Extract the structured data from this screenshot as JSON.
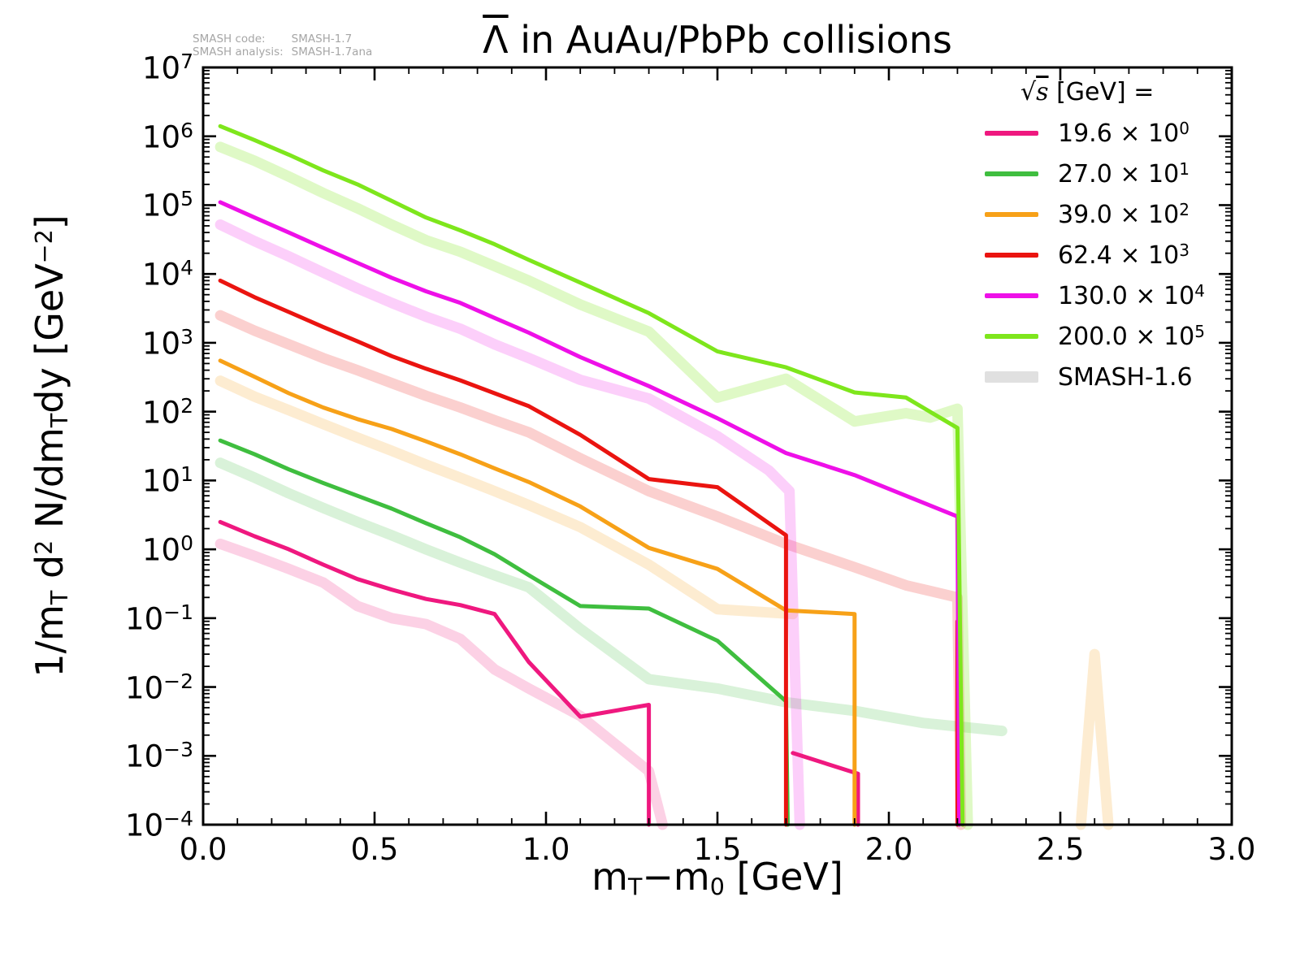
{
  "annotation": {
    "code_label": "SMASH code:",
    "code_value": "SMASH-1.7",
    "analysis_label": "SMASH analysis:",
    "analysis_value": "SMASH-1.7ana"
  },
  "title": {
    "particle": "Λ",
    "rest": " in AuAu/PbPb collisions"
  },
  "axes": {
    "xlabel": {
      "p1": "m",
      "sub1": "T",
      "p2": "−m",
      "sub2": "0",
      "p3": " [GeV]"
    },
    "ylabel": {
      "p1": "1/m",
      "sub1": "T",
      "p2": " d",
      "sup1": "2",
      "p3": " N/dm",
      "sub2": "T",
      "p4": "dy  [GeV",
      "sup2": "−2",
      "p5": "]"
    },
    "x_tick_labels": [
      "0.0",
      "0.5",
      "1.0",
      "1.5",
      "2.0",
      "2.5",
      "3.0"
    ],
    "x_tick_values": [
      0,
      0.5,
      1.0,
      1.5,
      2.0,
      2.5,
      3.0
    ],
    "x_minor_step": 0.1,
    "y_tick_exponents": [
      "7",
      "6",
      "5",
      "4",
      "3",
      "2",
      "1",
      "0",
      "−1",
      "−2",
      "−3",
      "−4"
    ],
    "y_tick_exp_values": [
      7,
      6,
      5,
      4,
      3,
      2,
      1,
      0,
      -1,
      -2,
      -3,
      -4
    ]
  },
  "legend": {
    "title_sqrt": "√",
    "title_arg": "s",
    "title_rest": " [GeV] =",
    "entries": [
      {
        "value": "19.6",
        "times": "×",
        "base": "10",
        "exp": "0",
        "color": "#ef187f",
        "thick": false
      },
      {
        "value": "27.0",
        "times": "×",
        "base": "10",
        "exp": "1",
        "color": "#3fbe3f",
        "thick": false
      },
      {
        "value": "39.0",
        "times": "×",
        "base": "10",
        "exp": "2",
        "color": "#f7a118",
        "thick": false
      },
      {
        "value": "62.4",
        "times": "×",
        "base": "10",
        "exp": "3",
        "color": "#ea1410",
        "thick": false
      },
      {
        "value": "130.0",
        "times": "×",
        "base": "10",
        "exp": "4",
        "color": "#ee10e8",
        "thick": false
      },
      {
        "value": "200.0",
        "times": "×",
        "base": "10",
        "exp": "5",
        "color": "#7ee61c",
        "thick": false
      },
      {
        "value": "SMASH-1.6",
        "times": "",
        "base": "",
        "exp": "",
        "color": "#e0e0e0",
        "thick": true
      }
    ]
  },
  "chart_data": {
    "type": "line",
    "title": "Λ̄ in AuAu/PbPb collisions",
    "xlabel": "mT − m0 [GeV]",
    "ylabel": "1/mT d2N/dmTdy [GeV−2]",
    "x_range": [
      0,
      3
    ],
    "y_range": [
      0.0001,
      10000000
    ],
    "y_scale": "log",
    "grid": false,
    "legend_position": "upper right",
    "series": [
      {
        "name": "19.6 (scaled ×10^0), SMASH-1.6",
        "color": "#ef187f",
        "width": 13,
        "opacity": 0.2,
        "segments": [
          [
            [
              0.05,
              1.2
            ],
            [
              0.15,
              0.8
            ],
            [
              0.25,
              0.52
            ],
            [
              0.35,
              0.33
            ],
            [
              0.45,
              0.15
            ],
            [
              0.55,
              0.1
            ],
            [
              0.65,
              0.082
            ],
            [
              0.75,
              0.05
            ],
            [
              0.85,
              0.018
            ],
            [
              0.95,
              0.0095
            ],
            [
              1.1,
              0.0038
            ],
            [
              1.3,
              0.0006
            ],
            [
              1.34,
              0.0001
            ]
          ]
        ]
      },
      {
        "name": "27.0 (scaled ×10^1), SMASH-1.6",
        "color": "#3fbe3f",
        "width": 13,
        "opacity": 0.2,
        "segments": [
          [
            [
              0.05,
              18
            ],
            [
              0.15,
              11
            ],
            [
              0.25,
              6.5
            ],
            [
              0.35,
              4.0
            ],
            [
              0.45,
              2.5
            ],
            [
              0.55,
              1.6
            ],
            [
              0.65,
              1.0
            ],
            [
              0.75,
              0.64
            ],
            [
              0.85,
              0.42
            ],
            [
              0.95,
              0.28
            ],
            [
              1.1,
              0.07
            ],
            [
              1.3,
              0.013
            ],
            [
              1.5,
              0.0095
            ],
            [
              1.7,
              0.006
            ],
            [
              1.9,
              0.0045
            ],
            [
              2.1,
              0.003
            ],
            [
              2.33,
              0.0023
            ]
          ]
        ]
      },
      {
        "name": "39.0 (scaled ×10^2), SMASH-1.6",
        "color": "#f7a118",
        "width": 13,
        "opacity": 0.2,
        "segments": [
          [
            [
              0.05,
              280
            ],
            [
              0.15,
              165
            ],
            [
              0.25,
              105
            ],
            [
              0.35,
              66
            ],
            [
              0.45,
              42
            ],
            [
              0.55,
              27
            ],
            [
              0.65,
              17
            ],
            [
              0.75,
              11
            ],
            [
              0.85,
              7
            ],
            [
              0.95,
              4.4
            ],
            [
              1.1,
              2.1
            ],
            [
              1.3,
              0.6
            ],
            [
              1.5,
              0.135
            ],
            [
              1.72,
              0.115
            ]
          ],
          [
            [
              2.56,
              0.0001
            ],
            [
              2.6,
              0.03
            ],
            [
              2.64,
              0.0001
            ]
          ]
        ]
      },
      {
        "name": "62.4 (scaled ×10^3), SMASH-1.6",
        "color": "#ea1410",
        "width": 13,
        "opacity": 0.2,
        "segments": [
          [
            [
              0.05,
              2500
            ],
            [
              0.15,
              1500
            ],
            [
              0.25,
              950
            ],
            [
              0.35,
              600
            ],
            [
              0.45,
              400
            ],
            [
              0.55,
              260
            ],
            [
              0.65,
              170
            ],
            [
              0.75,
              115
            ],
            [
              0.85,
              75
            ],
            [
              0.95,
              50
            ],
            [
              1.1,
              21
            ],
            [
              1.3,
              7
            ],
            [
              1.5,
              3
            ],
            [
              1.7,
              1.2
            ],
            [
              1.9,
              0.55
            ],
            [
              2.05,
              0.3
            ],
            [
              2.2,
              0.2
            ],
            [
              2.21,
              0.0001
            ]
          ]
        ]
      },
      {
        "name": "130.0 (scaled ×10^4), SMASH-1.6",
        "color": "#ee10e8",
        "width": 13,
        "opacity": 0.2,
        "segments": [
          [
            [
              0.05,
              52000
            ],
            [
              0.15,
              30000
            ],
            [
              0.25,
              18000
            ],
            [
              0.35,
              10500
            ],
            [
              0.45,
              6200
            ],
            [
              0.55,
              3800
            ],
            [
              0.65,
              2400
            ],
            [
              0.75,
              1600
            ],
            [
              0.85,
              950
            ],
            [
              0.95,
              600
            ],
            [
              1.1,
              290
            ],
            [
              1.3,
              155
            ],
            [
              1.5,
              44
            ],
            [
              1.65,
              14
            ],
            [
              1.71,
              7
            ],
            [
              1.74,
              0.0001
            ]
          ]
        ]
      },
      {
        "name": "200.0 (scaled ×10^5), SMASH-1.6",
        "color": "#7ee61c",
        "width": 13,
        "opacity": 0.25,
        "segments": [
          [
            [
              0.05,
              700000
            ],
            [
              0.15,
              440000
            ],
            [
              0.25,
              260000
            ],
            [
              0.35,
              150000
            ],
            [
              0.45,
              90000
            ],
            [
              0.55,
              52000
            ],
            [
              0.65,
              31000
            ],
            [
              0.75,
              21000
            ],
            [
              0.85,
              13000
            ],
            [
              0.95,
              8000
            ],
            [
              1.1,
              3600
            ],
            [
              1.3,
              1450
            ],
            [
              1.5,
              160
            ],
            [
              1.7,
              300
            ],
            [
              1.9,
              72
            ],
            [
              2.05,
              95
            ],
            [
              2.12,
              82
            ],
            [
              2.2,
              110
            ],
            [
              2.23,
              0.0001
            ]
          ]
        ]
      },
      {
        "name": "19.6 × 10^0",
        "color": "#ef187f",
        "width": 5,
        "opacity": 1,
        "segments": [
          [
            [
              0.05,
              2.5
            ],
            [
              0.15,
              1.55
            ],
            [
              0.25,
              1.0
            ],
            [
              0.35,
              0.6
            ],
            [
              0.45,
              0.37
            ],
            [
              0.55,
              0.26
            ],
            [
              0.65,
              0.19
            ],
            [
              0.75,
              0.155
            ],
            [
              0.85,
              0.115
            ],
            [
              0.95,
              0.023
            ],
            [
              1.1,
              0.0037
            ],
            [
              1.3,
              0.0055
            ],
            [
              1.3,
              0.0001
            ]
          ],
          [
            [
              1.72,
              0.0011
            ],
            [
              1.91,
              0.00055
            ],
            [
              1.91,
              0.0001
            ]
          ]
        ]
      },
      {
        "name": "27.0 × 10^1",
        "color": "#3fbe3f",
        "width": 5,
        "opacity": 1,
        "segments": [
          [
            [
              0.05,
              38
            ],
            [
              0.15,
              24
            ],
            [
              0.25,
              14.5
            ],
            [
              0.35,
              9.2
            ],
            [
              0.45,
              6.0
            ],
            [
              0.55,
              3.9
            ],
            [
              0.65,
              2.4
            ],
            [
              0.75,
              1.5
            ],
            [
              0.85,
              0.85
            ],
            [
              0.95,
              0.42
            ],
            [
              1.1,
              0.15
            ],
            [
              1.3,
              0.138
            ],
            [
              1.5,
              0.047
            ],
            [
              1.7,
              0.0062
            ],
            [
              1.705,
              0.0001
            ]
          ]
        ]
      },
      {
        "name": "39.0 × 10^2",
        "color": "#f7a118",
        "width": 5,
        "opacity": 1,
        "segments": [
          [
            [
              0.05,
              550
            ],
            [
              0.15,
              320
            ],
            [
              0.25,
              185
            ],
            [
              0.35,
              115
            ],
            [
              0.45,
              78
            ],
            [
              0.55,
              56
            ],
            [
              0.65,
              37
            ],
            [
              0.75,
              24
            ],
            [
              0.85,
              15
            ],
            [
              0.95,
              9.5
            ],
            [
              1.1,
              4.2
            ],
            [
              1.3,
              1.05
            ],
            [
              1.5,
              0.52
            ],
            [
              1.7,
              0.13
            ],
            [
              1.9,
              0.115
            ],
            [
              1.9,
              0.0001
            ]
          ]
        ]
      },
      {
        "name": "62.4 × 10^3",
        "color": "#ea1410",
        "width": 5,
        "opacity": 1,
        "segments": [
          [
            [
              0.05,
              8000
            ],
            [
              0.15,
              4600
            ],
            [
              0.25,
              2800
            ],
            [
              0.35,
              1700
            ],
            [
              0.45,
              1050
            ],
            [
              0.55,
              640
            ],
            [
              0.65,
              420
            ],
            [
              0.75,
              285
            ],
            [
              0.85,
              185
            ],
            [
              0.95,
              120
            ],
            [
              1.1,
              46
            ],
            [
              1.3,
              10.5
            ],
            [
              1.5,
              8
            ],
            [
              1.7,
              1.6
            ],
            [
              1.7,
              0.0001
            ]
          ],
          [
            [
              2.2,
              0.0001
            ],
            [
              2.2,
              0.09
            ]
          ]
        ]
      },
      {
        "name": "130.0 × 10^4",
        "color": "#ee10e8",
        "width": 5,
        "opacity": 1,
        "segments": [
          [
            [
              0.05,
              110000
            ],
            [
              0.15,
              66000
            ],
            [
              0.25,
              40000
            ],
            [
              0.35,
              24000
            ],
            [
              0.45,
              14500
            ],
            [
              0.55,
              8800
            ],
            [
              0.65,
              5600
            ],
            [
              0.75,
              3800
            ],
            [
              0.85,
              2300
            ],
            [
              0.95,
              1400
            ],
            [
              1.1,
              620
            ],
            [
              1.3,
              235
            ],
            [
              1.5,
              80
            ],
            [
              1.7,
              25
            ],
            [
              1.9,
              12
            ],
            [
              2.05,
              6
            ],
            [
              2.2,
              3
            ],
            [
              2.205,
              0.0001
            ]
          ]
        ]
      },
      {
        "name": "200.0 × 10^5",
        "color": "#7ee61c",
        "width": 5,
        "opacity": 1,
        "segments": [
          [
            [
              0.05,
              1400000
            ],
            [
              0.15,
              880000
            ],
            [
              0.25,
              540000
            ],
            [
              0.35,
              320000
            ],
            [
              0.45,
              200000
            ],
            [
              0.55,
              115000
            ],
            [
              0.65,
              66000
            ],
            [
              0.75,
              43000
            ],
            [
              0.85,
              27000
            ],
            [
              0.95,
              16000
            ],
            [
              1.1,
              7500
            ],
            [
              1.3,
              2700
            ],
            [
              1.5,
              750
            ],
            [
              1.7,
              440
            ],
            [
              1.9,
              190
            ],
            [
              2.05,
              160
            ],
            [
              2.2,
              58
            ],
            [
              2.215,
              0.0001
            ]
          ]
        ]
      }
    ]
  }
}
